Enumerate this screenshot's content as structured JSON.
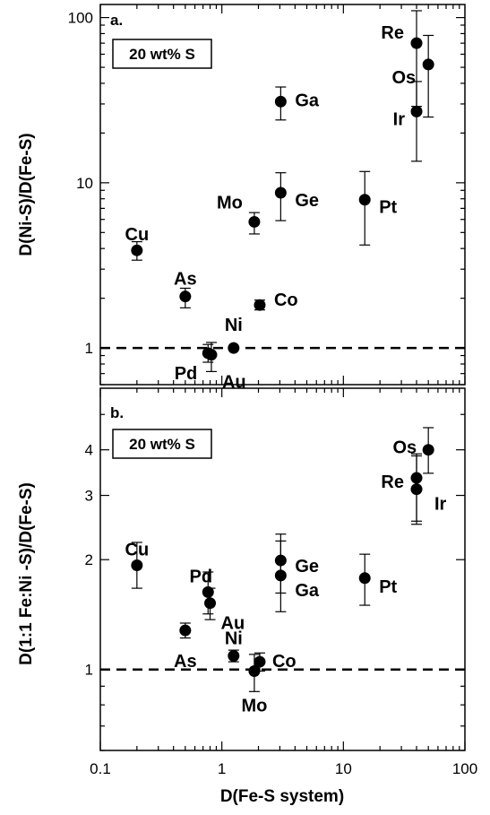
{
  "chart_data": [
    {
      "type": "scatter",
      "panel_label": "a.",
      "annotation_box": "20 wt% S",
      "xlabel": "",
      "ylabel": "D(Ni-S)/D(Fe-S)",
      "x_scale": "log",
      "y_scale": "log",
      "xlim": [
        0.1,
        100
      ],
      "ylim": [
        0.6,
        120
      ],
      "y_ticks": [
        {
          "value": 1,
          "label": "1"
        },
        {
          "value": 10,
          "label": "10"
        },
        {
          "value": 100,
          "label": "100"
        }
      ],
      "reference_line": {
        "y": 1,
        "style": "dashed"
      },
      "points": [
        {
          "label": "Cu",
          "x": 0.2,
          "y": 3.9,
          "y_low": 3.4,
          "y_high": 4.4
        },
        {
          "label": "As",
          "x": 0.5,
          "y": 2.05,
          "y_low": 1.75,
          "y_high": 2.3
        },
        {
          "label": "Pd",
          "x": 0.77,
          "y": 0.93,
          "y_low": 0.82,
          "y_high": 1.05
        },
        {
          "label": "Au",
          "x": 0.82,
          "y": 0.91,
          "y_low": 0.72,
          "y_high": 1.08
        },
        {
          "label": "Ni",
          "x": 1.25,
          "y": 1.0,
          "y_low": 1.0,
          "y_high": 1.0
        },
        {
          "label": "Co",
          "x": 2.05,
          "y": 1.82,
          "y_low": 1.7,
          "y_high": 1.95
        },
        {
          "label": "Mo",
          "x": 1.85,
          "y": 5.8,
          "y_low": 4.9,
          "y_high": 6.6
        },
        {
          "label": "Ge",
          "x": 3.05,
          "y": 8.7,
          "y_low": 5.9,
          "y_high": 11.5
        },
        {
          "label": "Ga",
          "x": 3.05,
          "y": 31,
          "y_low": 24,
          "y_high": 38
        },
        {
          "label": "Pt",
          "x": 15,
          "y": 7.9,
          "y_low": 4.2,
          "y_high": 11.7
        },
        {
          "label": "Ir",
          "x": 40,
          "y": 27,
          "y_low": 13.5,
          "y_high": 41
        },
        {
          "label": "Re",
          "x": 40,
          "y": 70,
          "y_low": 29,
          "y_high": 110
        },
        {
          "label": "Os",
          "x": 50,
          "y": 52,
          "y_low": 25,
          "y_high": 78
        }
      ]
    },
    {
      "type": "scatter",
      "panel_label": "b.",
      "annotation_box": "20 wt% S",
      "xlabel": "D(Fe-S system)",
      "ylabel": "D(1:1 Fe:Ni -S)/D(Fe-S)",
      "x_scale": "log",
      "y_scale": "log",
      "xlim": [
        0.1,
        100
      ],
      "ylim": [
        0.6,
        5.9
      ],
      "x_ticks": [
        {
          "value": 0.1,
          "label": "0.1"
        },
        {
          "value": 1,
          "label": "1"
        },
        {
          "value": 10,
          "label": "10"
        },
        {
          "value": 100,
          "label": "100"
        }
      ],
      "y_ticks": [
        {
          "value": 1,
          "label": "1"
        },
        {
          "value": 2,
          "label": "2"
        },
        {
          "value": 3,
          "label": "3"
        },
        {
          "value": 4,
          "label": "4"
        }
      ],
      "reference_line": {
        "y": 1,
        "style": "dashed"
      },
      "points": [
        {
          "label": "Cu",
          "x": 0.2,
          "y": 1.93,
          "y_low": 1.67,
          "y_high": 2.23
        },
        {
          "label": "Pd",
          "x": 0.77,
          "y": 1.63,
          "y_low": 1.42,
          "y_high": 1.85
        },
        {
          "label": "Au",
          "x": 0.8,
          "y": 1.52,
          "y_low": 1.37,
          "y_high": 1.67
        },
        {
          "label": "As",
          "x": 0.5,
          "y": 1.28,
          "y_low": 1.22,
          "y_high": 1.34
        },
        {
          "label": "Ni",
          "x": 1.25,
          "y": 1.09,
          "y_low": 1.05,
          "y_high": 1.13
        },
        {
          "label": "Co",
          "x": 2.05,
          "y": 1.05,
          "y_low": 0.99,
          "y_high": 1.11
        },
        {
          "label": "Mo",
          "x": 1.85,
          "y": 0.99,
          "y_low": 0.87,
          "y_high": 1.1
        },
        {
          "label": "Ge",
          "x": 3.05,
          "y": 1.99,
          "y_low": 1.62,
          "y_high": 2.35
        },
        {
          "label": "Ga",
          "x": 3.05,
          "y": 1.81,
          "y_low": 1.44,
          "y_high": 2.25
        },
        {
          "label": "Pt",
          "x": 15,
          "y": 1.78,
          "y_low": 1.5,
          "y_high": 2.07
        },
        {
          "label": "Os",
          "x": 50,
          "y": 4.0,
          "y_low": 3.45,
          "y_high": 4.6
        },
        {
          "label": "Re",
          "x": 40,
          "y": 3.35,
          "y_low": 2.55,
          "y_high": 3.9
        },
        {
          "label": "Ir",
          "x": 40,
          "y": 3.12,
          "y_low": 2.5,
          "y_high": 3.85
        }
      ]
    }
  ]
}
